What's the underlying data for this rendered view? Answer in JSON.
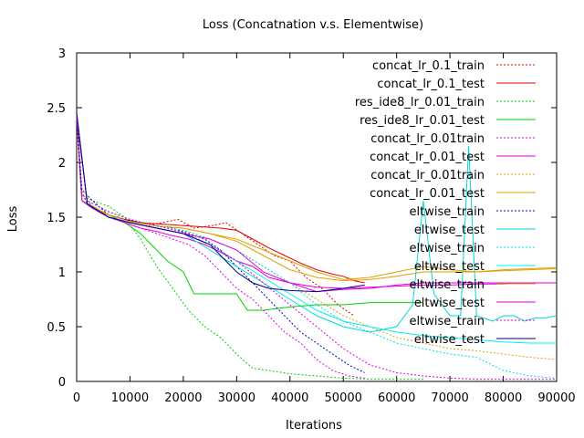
{
  "chart_data": {
    "type": "line",
    "title": "Loss (Concatnation v.s. Elementwise)",
    "xlabel": "Iterations",
    "ylabel": "Loss",
    "xlim": [
      0,
      90000
    ],
    "ylim": [
      0,
      3
    ],
    "xticks": [
      "0",
      "10000",
      "20000",
      "30000",
      "40000",
      "50000",
      "60000",
      "70000",
      "80000",
      "90000"
    ],
    "yticks": [
      "0",
      "0.5",
      "1",
      "1.5",
      "2",
      "2.5",
      "3"
    ],
    "legend_position": "top-right",
    "grid": false,
    "series": [
      {
        "name": "concat_lr_0.1_train",
        "color": "#e00000",
        "dash": "dotted",
        "x": [
          0,
          800,
          2000,
          4000,
          6000,
          8000,
          10000,
          13000,
          16000,
          19000,
          22000,
          25000,
          28000,
          31000,
          34000,
          37000,
          40000,
          43000,
          46000,
          49000,
          52000
        ],
        "y": [
          2.4,
          1.75,
          1.62,
          1.55,
          1.5,
          1.47,
          1.45,
          1.42,
          1.45,
          1.48,
          1.4,
          1.42,
          1.45,
          1.35,
          1.25,
          1.15,
          1.1,
          0.95,
          0.85,
          0.7,
          0.6
        ]
      },
      {
        "name": "concat_lr_0.1_test",
        "color": "#e00000",
        "dash": "solid",
        "x": [
          0,
          1000,
          3000,
          6000,
          9000,
          12000,
          15000,
          18000,
          21000,
          24000,
          27000,
          30000,
          33000,
          36000,
          39000,
          42000,
          45000,
          48000,
          50000,
          52000,
          54000
        ],
        "y": [
          2.45,
          1.65,
          1.58,
          1.52,
          1.48,
          1.45,
          1.44,
          1.43,
          1.42,
          1.41,
          1.4,
          1.38,
          1.3,
          1.22,
          1.15,
          1.08,
          1.02,
          0.98,
          0.96,
          0.92,
          0.9
        ]
      },
      {
        "name": "res_ide8_lr_0.01_train",
        "color": "#00d000",
        "dash": "dotted",
        "x": [
          0,
          1000,
          3000,
          6000,
          9000,
          12000,
          15000,
          18000,
          21000,
          24000,
          27000,
          30000,
          33000,
          36000,
          40000,
          45000,
          50000,
          55000,
          60000,
          65000
        ],
        "y": [
          2.45,
          1.7,
          1.65,
          1.6,
          1.5,
          1.3,
          1.05,
          0.85,
          0.65,
          0.5,
          0.4,
          0.25,
          0.12,
          0.1,
          0.07,
          0.05,
          0.03,
          0.02,
          0.02,
          0.02
        ]
      },
      {
        "name": "res_ide8_lr_0.01_test",
        "color": "#00d000",
        "dash": "solid",
        "x": [
          0,
          1000,
          3000,
          6000,
          9000,
          12000,
          15000,
          17000,
          20000,
          22000,
          25000,
          30000,
          32000,
          35000,
          40000,
          45000,
          50000,
          55000,
          60000,
          65000
        ],
        "y": [
          2.45,
          1.65,
          1.6,
          1.52,
          1.45,
          1.35,
          1.2,
          1.1,
          1.0,
          0.8,
          0.8,
          0.8,
          0.65,
          0.65,
          0.68,
          0.7,
          0.7,
          0.72,
          0.72,
          0.72
        ]
      },
      {
        "name": "concat_lr_0.01train",
        "color": "#e000e0",
        "dash": "dotted",
        "x": [
          0,
          1000,
          3000,
          6000,
          9000,
          12000,
          15000,
          18000,
          21000,
          24000,
          27000,
          30000,
          33000,
          36000,
          39000,
          42000,
          45000,
          48000,
          51000,
          54000
        ],
        "y": [
          2.4,
          1.7,
          1.6,
          1.5,
          1.45,
          1.4,
          1.35,
          1.3,
          1.25,
          1.15,
          1.0,
          0.85,
          0.75,
          0.6,
          0.45,
          0.35,
          0.2,
          0.1,
          0.05,
          0.03
        ]
      },
      {
        "name": "concat_lr_0.01_test",
        "color": "#e000e0",
        "dash": "solid",
        "x": [
          0,
          1000,
          3000,
          6000,
          9000,
          12000,
          15000,
          18000,
          21000,
          24000,
          27000,
          30000,
          33000,
          36000,
          40000,
          45000,
          50000,
          55000,
          60000,
          65000,
          70000,
          75000,
          80000,
          85000,
          90000
        ],
        "y": [
          2.45,
          1.65,
          1.58,
          1.5,
          1.45,
          1.4,
          1.37,
          1.33,
          1.3,
          1.25,
          1.18,
          1.1,
          1.05,
          0.95,
          0.9,
          0.82,
          0.84,
          0.85,
          0.88,
          0.9,
          0.9,
          0.9,
          0.9,
          0.9,
          0.9
        ]
      },
      {
        "name": "concat_lr_0.01train",
        "color": "#e0a000",
        "dash": "dotted",
        "x": [
          0,
          2000,
          6000,
          10000,
          15000,
          20000,
          25000,
          30000,
          35000,
          40000,
          45000,
          50000,
          55000,
          60000,
          65000,
          70000,
          75000,
          80000,
          85000,
          90000
        ],
        "y": [
          2.4,
          1.65,
          1.55,
          1.48,
          1.42,
          1.38,
          1.3,
          1.2,
          1.05,
          0.9,
          0.75,
          0.6,
          0.5,
          0.4,
          0.35,
          0.3,
          0.28,
          0.25,
          0.22,
          0.2
        ]
      },
      {
        "name": "concat_lr_0.01_test",
        "color": "#e0a000",
        "dash": "solid",
        "x": [
          0,
          2000,
          6000,
          10000,
          15000,
          20000,
          25000,
          30000,
          35000,
          40000,
          45000,
          50000,
          55000,
          60000,
          65000,
          70000,
          75000,
          80000,
          85000,
          90000
        ],
        "y": [
          2.45,
          1.62,
          1.52,
          1.46,
          1.42,
          1.4,
          1.35,
          1.3,
          1.2,
          1.1,
          1.0,
          0.93,
          0.95,
          1.0,
          1.05,
          1.02,
          1.0,
          1.02,
          1.03,
          1.04
        ]
      },
      {
        "name": "eltwise_train",
        "color": "#0000b0",
        "dash": "dotted",
        "x": [
          0,
          1000,
          3000,
          6000,
          9000,
          12000,
          15000,
          18000,
          21000,
          24000,
          27000,
          30000,
          33000,
          36000,
          39000,
          42000,
          45000,
          48000,
          51000,
          54000
        ],
        "y": [
          2.4,
          1.75,
          1.65,
          1.52,
          1.48,
          1.45,
          1.42,
          1.4,
          1.35,
          1.3,
          1.2,
          1.05,
          0.9,
          0.75,
          0.6,
          0.45,
          0.35,
          0.25,
          0.15,
          0.08
        ]
      },
      {
        "name": "eltwise_test",
        "color": "#00d8d8",
        "dash": "solid",
        "x": [
          0,
          2000,
          6000,
          10000,
          15000,
          20000,
          25000,
          30000,
          35000,
          40000,
          45000,
          50000,
          55000,
          60000,
          63000,
          65000,
          67000,
          70000,
          72000,
          73500,
          75000,
          78000,
          80000,
          82000,
          84000,
          86000,
          88000,
          90000
        ],
        "y": [
          2.45,
          1.62,
          1.5,
          1.45,
          1.4,
          1.35,
          1.2,
          1.05,
          0.9,
          0.75,
          0.6,
          0.5,
          0.45,
          0.5,
          0.7,
          1.65,
          0.8,
          0.6,
          0.6,
          2.15,
          0.6,
          0.55,
          0.6,
          0.6,
          0.55,
          0.58,
          0.58,
          0.6
        ]
      },
      {
        "name": "eltwise_train",
        "color": "#00e0e0",
        "dash": "dotted",
        "x": [
          0,
          2000,
          6000,
          10000,
          15000,
          20000,
          25000,
          30000,
          35000,
          40000,
          45000,
          50000,
          55000,
          60000,
          65000,
          70000,
          75000,
          80000,
          85000,
          90000
        ],
        "y": [
          2.4,
          1.65,
          1.55,
          1.48,
          1.42,
          1.38,
          1.3,
          1.2,
          1.05,
          0.9,
          0.7,
          0.55,
          0.45,
          0.35,
          0.3,
          0.25,
          0.22,
          0.1,
          0.05,
          0.03
        ]
      },
      {
        "name": "eltwise_test",
        "color": "#00f0f0",
        "dash": "solid",
        "x": [
          0,
          2000,
          6000,
          10000,
          15000,
          20000,
          25000,
          30000,
          35000,
          40000,
          45000,
          50000,
          55000,
          60000,
          65000,
          70000,
          75000,
          80000,
          85000,
          90000
        ],
        "y": [
          2.45,
          1.62,
          1.5,
          1.45,
          1.4,
          1.35,
          1.25,
          1.1,
          0.95,
          0.8,
          0.65,
          0.55,
          0.5,
          0.45,
          0.42,
          0.4,
          0.38,
          0.36,
          0.35,
          0.35
        ]
      },
      {
        "name": "eltwise_train",
        "color": "#e0a000",
        "dash": "solid",
        "x": [
          0,
          2000,
          6000,
          10000,
          15000,
          20000,
          25000,
          30000,
          35000,
          40000,
          45000,
          50000,
          55000,
          60000,
          65000,
          70000,
          75000,
          80000,
          85000,
          90000
        ],
        "y": [
          2.45,
          1.62,
          1.52,
          1.46,
          1.42,
          1.4,
          1.35,
          1.28,
          1.15,
          1.02,
          0.95,
          0.92,
          0.93,
          0.96,
          1.0,
          1.0,
          1.0,
          1.01,
          1.02,
          1.03
        ]
      },
      {
        "name": "eltwise_test",
        "color": "#e000e0",
        "dash": "solid",
        "x": [
          0,
          2000,
          6000,
          10000,
          15000,
          20000,
          25000,
          30000,
          35000,
          40000,
          45000,
          50000,
          55000,
          60000,
          65000,
          70000,
          75000,
          80000,
          85000,
          90000
        ],
        "y": [
          2.45,
          1.62,
          1.5,
          1.45,
          1.4,
          1.35,
          1.3,
          1.2,
          1.0,
          0.9,
          0.86,
          0.85,
          0.86,
          0.87,
          0.88,
          0.88,
          0.89,
          0.89,
          0.9,
          0.9
        ]
      },
      {
        "name": "eltwise_train",
        "color": "#e000e0",
        "dash": "dotted",
        "x": [
          0,
          2000,
          6000,
          10000,
          15000,
          20000,
          25000,
          30000,
          35000,
          40000,
          45000,
          50000,
          55000,
          60000,
          65000,
          70000,
          75000,
          80000,
          85000,
          90000
        ],
        "y": [
          2.4,
          1.65,
          1.55,
          1.48,
          1.42,
          1.36,
          1.25,
          1.1,
          0.9,
          0.7,
          0.5,
          0.3,
          0.15,
          0.08,
          0.05,
          0.03,
          0.02,
          0.02,
          0.02,
          0.02
        ]
      },
      {
        "name": "eltwise_test",
        "color": "#000080",
        "dash": "solid",
        "x": [
          0,
          2000,
          6000,
          10000,
          15000,
          20000,
          25000,
          28000,
          30000,
          33000,
          36000,
          40000,
          45000,
          50000,
          54000
        ],
        "y": [
          2.45,
          1.62,
          1.5,
          1.45,
          1.4,
          1.35,
          1.25,
          1.1,
          1.0,
          0.9,
          0.85,
          0.83,
          0.82,
          0.85,
          0.88
        ]
      }
    ]
  }
}
